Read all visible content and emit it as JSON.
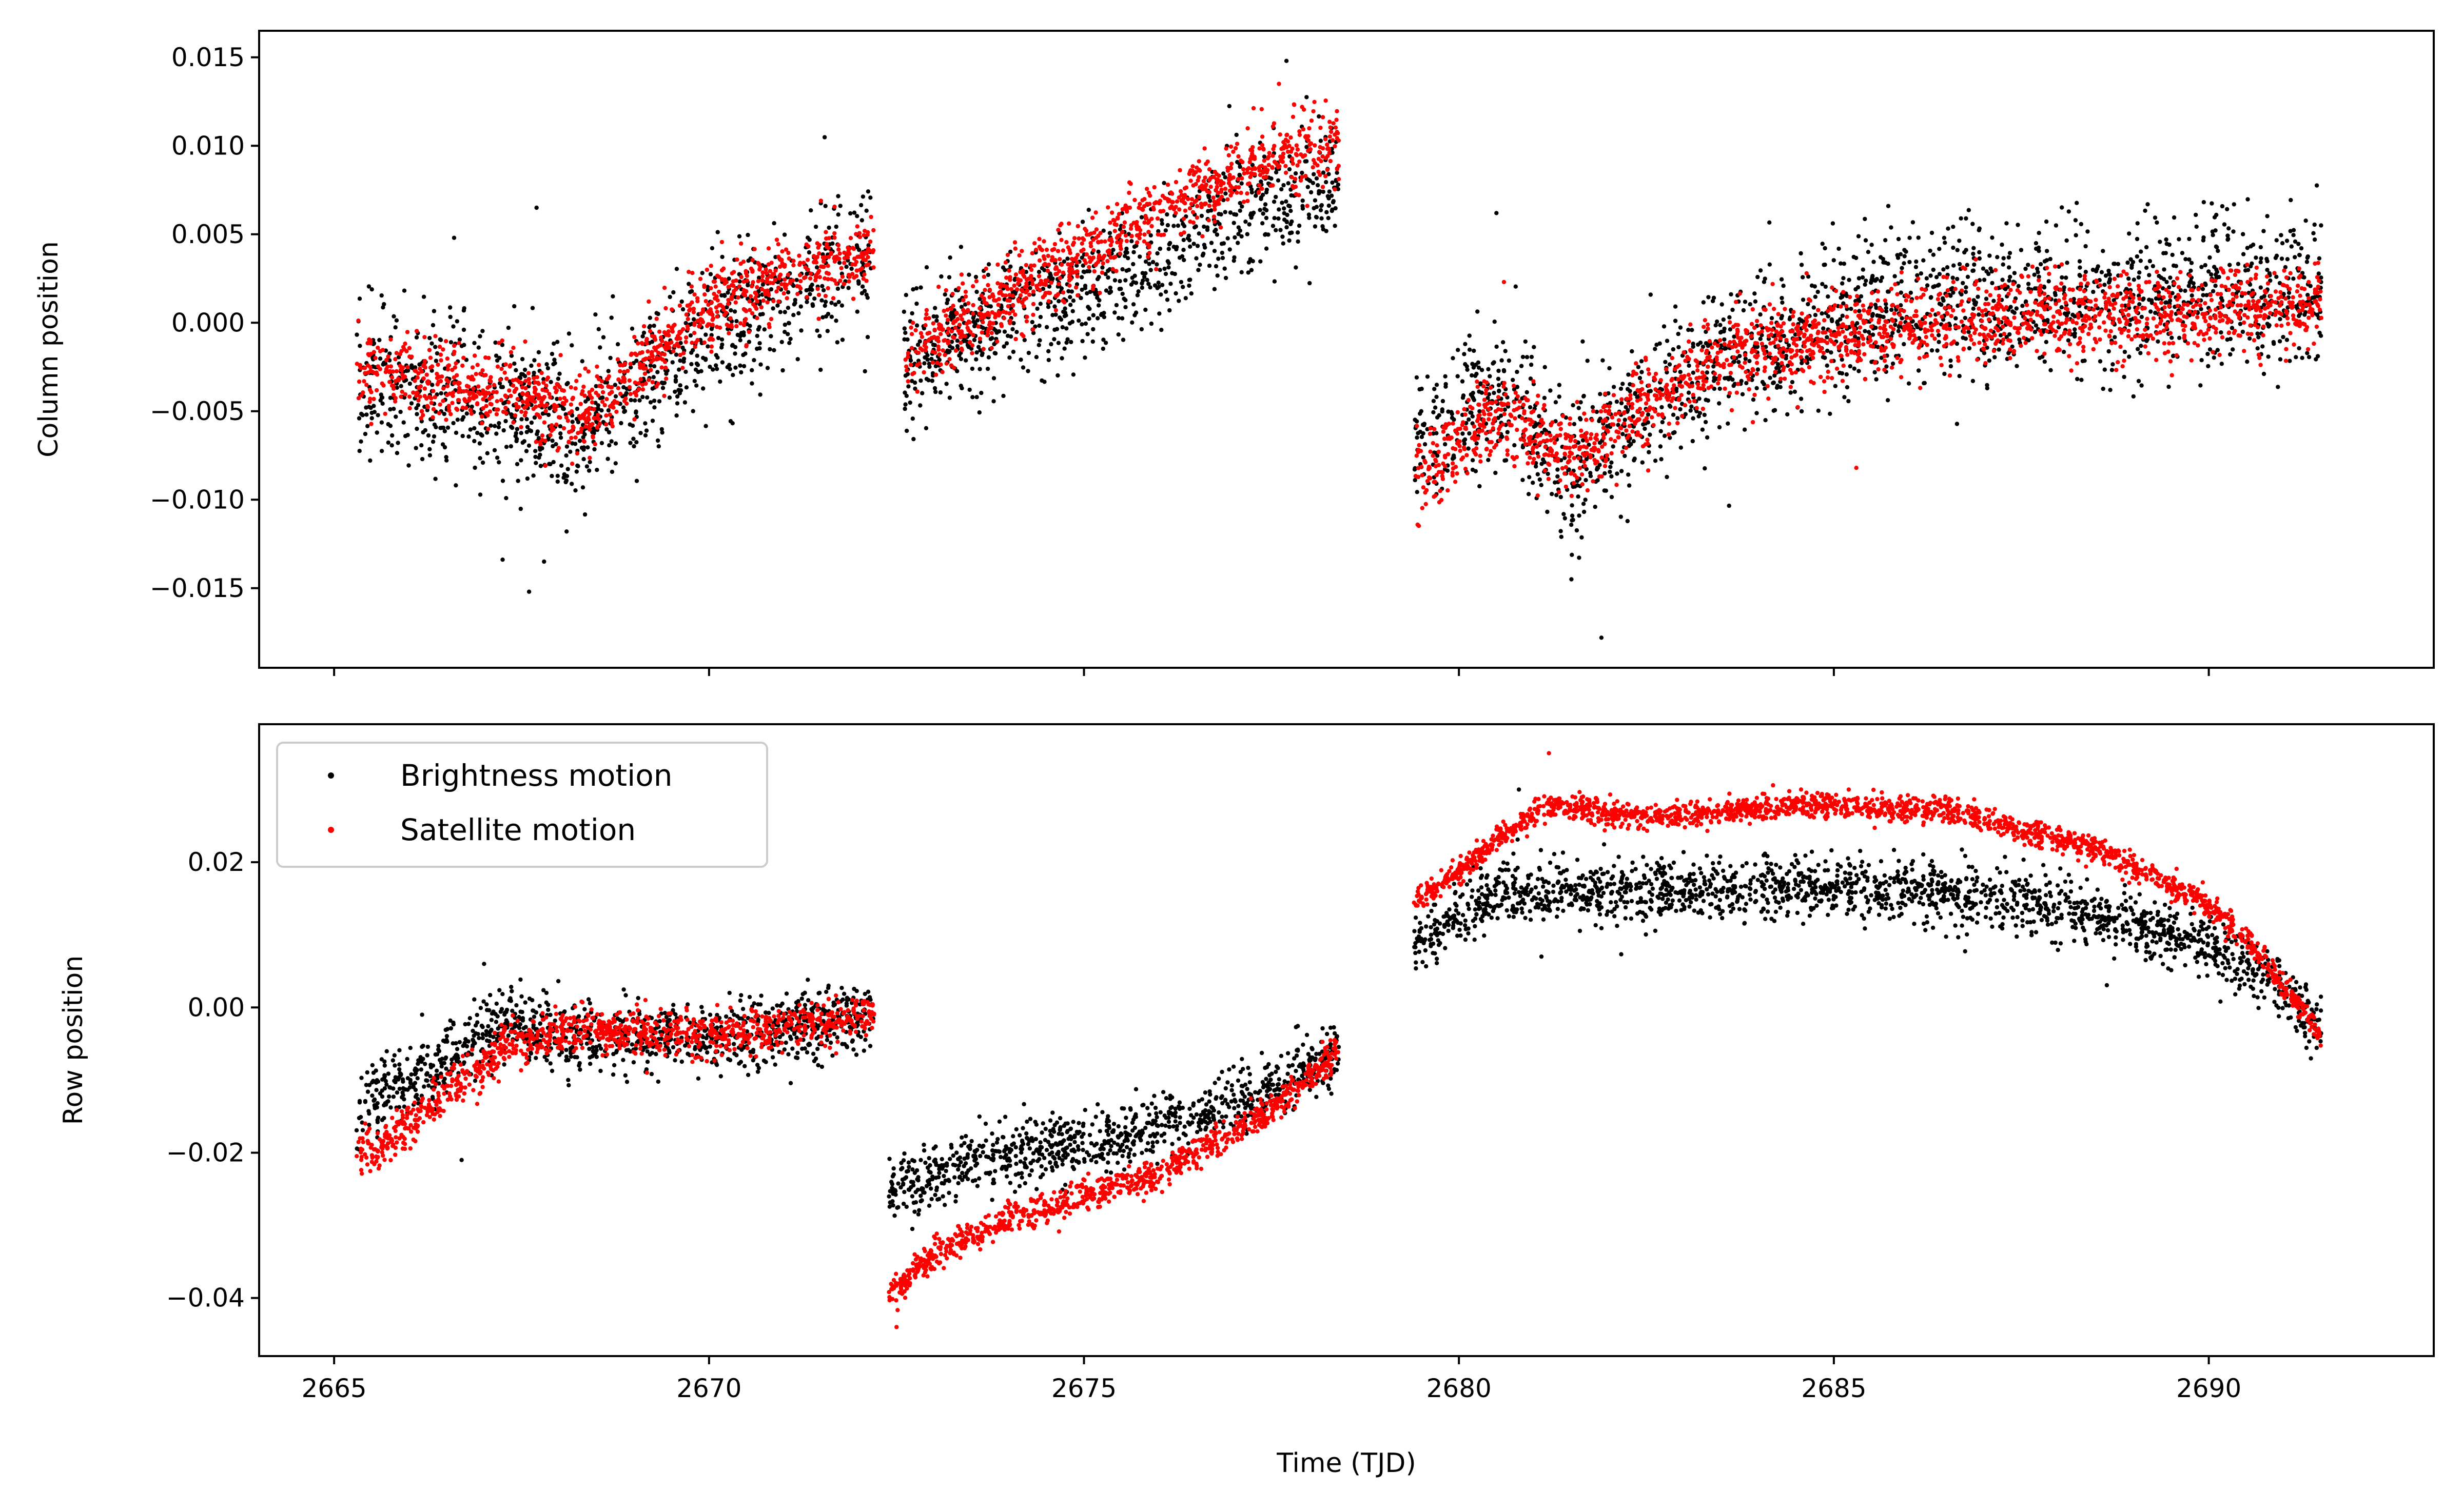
{
  "colors": {
    "brightness": "#000000",
    "satellite": "#ff0000"
  },
  "chart_data": [
    {
      "id": "column",
      "type": "scatter",
      "title": "",
      "xlabel": "",
      "ylabel": "Column position",
      "xlim": [
        2664.0,
        2693.0
      ],
      "ylim": [
        -0.0195,
        0.0165
      ],
      "xticks": [
        2665,
        2670,
        2675,
        2680,
        2685,
        2690
      ],
      "show_xtick_labels": false,
      "yticks": [
        -0.015,
        -0.01,
        -0.005,
        0.0,
        0.005,
        0.01,
        0.015
      ],
      "ytick_labels": [
        "−0.015",
        "−0.010",
        "−0.005",
        "0.000",
        "0.005",
        "0.010",
        "0.015"
      ],
      "grid": false,
      "series": [
        {
          "name": "Brightness motion",
          "color": "#000000",
          "segments": [
            {
              "x_start": 2665.3,
              "x_end": 2672.2,
              "trend": [
                [
                  2665.3,
                  -0.003
                ],
                [
                  2667.5,
                  -0.005
                ],
                [
                  2668.3,
                  -0.006
                ],
                [
                  2670.2,
                  0.0
                ],
                [
                  2672.2,
                  0.004
                ]
              ],
              "scatter": 0.0022
            },
            {
              "x_start": 2672.6,
              "x_end": 2678.4,
              "trend": [
                [
                  2672.6,
                  -0.002
                ],
                [
                  2675.0,
                  0.002
                ],
                [
                  2677.5,
                  0.007
                ],
                [
                  2678.4,
                  0.008
                ]
              ],
              "scatter": 0.0018
            },
            {
              "x_start": 2679.4,
              "x_end": 2691.5,
              "trend": [
                [
                  2679.4,
                  -0.007
                ],
                [
                  2680.5,
                  -0.004
                ],
                [
                  2681.5,
                  -0.008
                ],
                [
                  2683.5,
                  -0.002
                ],
                [
                  2686.0,
                  0.001
                ],
                [
                  2691.5,
                  0.002
                ]
              ],
              "scatter": 0.0022
            }
          ],
          "outliers": [
            [
              2667.6,
              -0.0152
            ],
            [
              2667.8,
              -0.0135
            ],
            [
              2668.1,
              -0.0118
            ],
            [
              2667.7,
              0.0065
            ],
            [
              2681.5,
              -0.0145
            ],
            [
              2681.9,
              -0.0178
            ],
            [
              2680.5,
              0.0062
            ],
            [
              2677.7,
              0.0148
            ],
            [
              2666.6,
              0.0048
            ]
          ]
        },
        {
          "name": "Satellite motion",
          "color": "#ff0000",
          "segments": [
            {
              "x_start": 2665.3,
              "x_end": 2672.2,
              "trend": [
                [
                  2665.3,
                  -0.0025
                ],
                [
                  2667.5,
                  -0.004
                ],
                [
                  2668.3,
                  -0.0055
                ],
                [
                  2670.2,
                  0.0015
                ],
                [
                  2672.2,
                  0.004
                ]
              ],
              "scatter": 0.0011
            },
            {
              "x_start": 2672.6,
              "x_end": 2678.4,
              "trend": [
                [
                  2672.6,
                  -0.002
                ],
                [
                  2675.0,
                  0.004
                ],
                [
                  2677.5,
                  0.0095
                ],
                [
                  2678.4,
                  0.01
                ]
              ],
              "scatter": 0.0011
            },
            {
              "x_start": 2679.4,
              "x_end": 2691.5,
              "trend": [
                [
                  2679.4,
                  -0.009
                ],
                [
                  2680.5,
                  -0.005
                ],
                [
                  2681.5,
                  -0.0075
                ],
                [
                  2683.5,
                  -0.002
                ],
                [
                  2686.0,
                  0.0
                ],
                [
                  2691.5,
                  0.001
                ]
              ],
              "scatter": 0.0012
            }
          ],
          "outliers": [
            [
              2677.6,
              0.0135
            ],
            [
              2685.3,
              -0.0082
            ],
            [
              2680.6,
              0.0023
            ]
          ]
        }
      ]
    },
    {
      "id": "row",
      "type": "scatter",
      "title": "",
      "xlabel": "Time (TJD)",
      "ylabel": "Row position",
      "xlim": [
        2664.0,
        2693.0
      ],
      "ylim": [
        -0.048,
        0.039
      ],
      "xticks": [
        2665,
        2670,
        2675,
        2680,
        2685,
        2690
      ],
      "xtick_labels": [
        "2665",
        "2670",
        "2675",
        "2680",
        "2685",
        "2690"
      ],
      "show_xtick_labels": true,
      "yticks": [
        -0.04,
        -0.02,
        0.0,
        0.02
      ],
      "ytick_labels": [
        "−0.04",
        "−0.02",
        "0.00",
        "0.02"
      ],
      "grid": false,
      "legend_position": "top-left",
      "series": [
        {
          "name": "Brightness motion",
          "color": "#000000",
          "segments": [
            {
              "x_start": 2665.3,
              "x_end": 2672.2,
              "trend": [
                [
                  2665.3,
                  -0.014
                ],
                [
                  2666.5,
                  -0.007
                ],
                [
                  2667.3,
                  -0.002
                ],
                [
                  2668.3,
                  -0.004
                ],
                [
                  2670.0,
                  -0.004
                ],
                [
                  2672.2,
                  -0.001
                ]
              ],
              "scatter": 0.0025
            },
            {
              "x_start": 2672.4,
              "x_end": 2678.4,
              "trend": [
                [
                  2672.4,
                  -0.026
                ],
                [
                  2673.5,
                  -0.021
                ],
                [
                  2675.5,
                  -0.018
                ],
                [
                  2677.5,
                  -0.011
                ],
                [
                  2678.4,
                  -0.006
                ]
              ],
              "scatter": 0.0022
            },
            {
              "x_start": 2679.4,
              "x_end": 2691.5,
              "trend": [
                [
                  2679.4,
                  0.008
                ],
                [
                  2680.5,
                  0.016
                ],
                [
                  2683.0,
                  0.016
                ],
                [
                  2685.0,
                  0.017
                ],
                [
                  2687.5,
                  0.015
                ],
                [
                  2689.5,
                  0.01
                ],
                [
                  2690.7,
                  0.005
                ],
                [
                  2691.5,
                  -0.003
                ]
              ],
              "scatter": 0.0022
            }
          ],
          "outliers": [
            [
              2666.7,
              -0.021
            ],
            [
              2667.0,
              0.006
            ],
            [
              2680.8,
              0.03
            ],
            [
              2681.1,
              0.007
            ]
          ]
        },
        {
          "name": "Satellite motion",
          "color": "#ff0000",
          "segments": [
            {
              "x_start": 2665.3,
              "x_end": 2672.2,
              "trend": [
                [
                  2665.3,
                  -0.021
                ],
                [
                  2666.5,
                  -0.012
                ],
                [
                  2667.3,
                  -0.005
                ],
                [
                  2668.3,
                  -0.003
                ],
                [
                  2670.0,
                  -0.004
                ],
                [
                  2672.2,
                  -0.001
                ]
              ],
              "scatter": 0.0015
            },
            {
              "x_start": 2672.4,
              "x_end": 2678.4,
              "trend": [
                [
                  2672.4,
                  -0.04
                ],
                [
                  2673.0,
                  -0.034
                ],
                [
                  2674.0,
                  -0.029
                ],
                [
                  2676.0,
                  -0.023
                ],
                [
                  2677.5,
                  -0.014
                ],
                [
                  2678.4,
                  -0.006
                ]
              ],
              "scatter": 0.0011
            },
            {
              "x_start": 2679.4,
              "x_end": 2691.5,
              "trend": [
                [
                  2679.4,
                  0.014
                ],
                [
                  2680.5,
                  0.023
                ],
                [
                  2681.2,
                  0.028
                ],
                [
                  2682.5,
                  0.026
                ],
                [
                  2684.5,
                  0.028
                ],
                [
                  2686.5,
                  0.027
                ],
                [
                  2688.5,
                  0.022
                ],
                [
                  2690.0,
                  0.014
                ],
                [
                  2690.8,
                  0.006
                ],
                [
                  2691.5,
                  -0.004
                ]
              ],
              "scatter": 0.0009
            }
          ],
          "outliers": [
            [
              2681.2,
              0.035
            ],
            [
              2672.5,
              -0.044
            ]
          ]
        }
      ]
    }
  ],
  "legend": {
    "items": [
      {
        "label": "Brightness motion",
        "color": "#000000"
      },
      {
        "label": "Satellite motion",
        "color": "#ff0000"
      }
    ]
  }
}
